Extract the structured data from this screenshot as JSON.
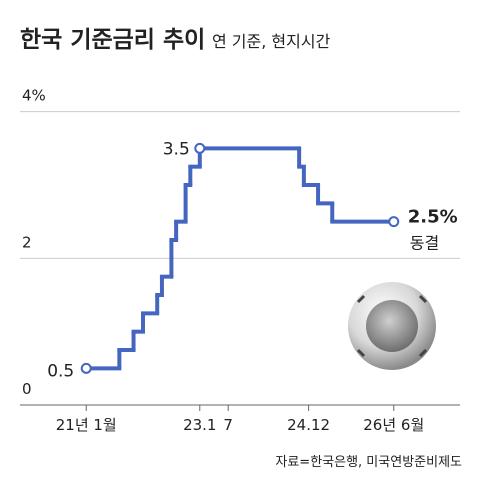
{
  "chart_data": {
    "type": "step-line",
    "title": "한국 기준금리 추이",
    "subtitle": "연 기준, 현지시간",
    "source": "자료=한국은행, 미국연방준비제도",
    "x": [
      "2021-01",
      "2021-08",
      "2021-11",
      "2022-01",
      "2022-04",
      "2022-05",
      "2022-07",
      "2022-08",
      "2022-10",
      "2022-11",
      "2023-01",
      "2024-10",
      "2024-11",
      "2025-02",
      "2025-05",
      "2026-06"
    ],
    "series": [
      {
        "name": "한국 기준금리",
        "color": "#4466c0",
        "values": [
          0.5,
          0.75,
          1.0,
          1.25,
          1.5,
          1.75,
          2.25,
          2.5,
          3.0,
          3.25,
          3.5,
          3.25,
          3.0,
          2.75,
          2.5,
          2.5
        ]
      }
    ],
    "annotations": [
      {
        "text": "0.5",
        "x": "2021-01",
        "y": 0.5
      },
      {
        "text": "3.5",
        "x": "2023-01",
        "y": 3.5
      },
      {
        "text": "2.5%",
        "x": "2026-06",
        "y": 2.5
      },
      {
        "text": "동결",
        "x": "2026-06",
        "y": 2.5
      }
    ],
    "xlim": [
      "2019-11",
      "2027-08"
    ],
    "xticks": [
      {
        "value": "2021-01",
        "label": "21년 1월"
      },
      {
        "value": "2023-01",
        "label": "23.1"
      },
      {
        "value": "2023-07",
        "label": "7"
      },
      {
        "value": "2024-12",
        "label": "24.12"
      },
      {
        "value": "2026-06",
        "label": "26년 6월"
      }
    ],
    "ylim": [
      0,
      4.2
    ],
    "yticks": [
      0,
      2,
      {
        "value": 4,
        "label": "4%"
      }
    ],
    "grid": true
  }
}
